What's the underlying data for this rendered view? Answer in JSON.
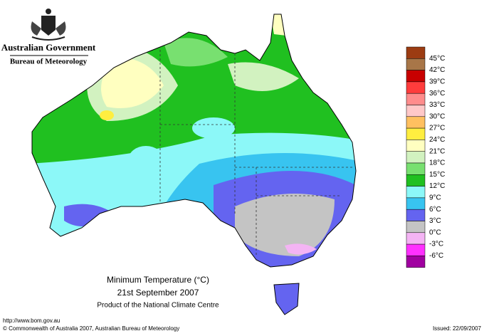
{
  "header": {
    "government": "Australian Government",
    "bureau": "Bureau of Meteorology"
  },
  "map": {
    "title": "Minimum Temperature (°C)",
    "date": "21st September 2007",
    "product": "Product of the National Climate Centre"
  },
  "legend": {
    "labels": [
      "45°C",
      "42°C",
      "39°C",
      "36°C",
      "33°C",
      "30°C",
      "27°C",
      "24°C",
      "21°C",
      "18°C",
      "15°C",
      "12°C",
      "9°C",
      "6°C",
      "3°C",
      "0°C",
      "-3°C",
      "-6°C"
    ],
    "colors": [
      "#9c3c12",
      "#a87648",
      "#c80000",
      "#ff3c3c",
      "#ff8c8c",
      "#ffc8c8",
      "#ffc060",
      "#ffee40",
      "#ffffc0",
      "#d2f2c0",
      "#78e070",
      "#20c020",
      "#8cf8f8",
      "#38c4f0",
      "#6464f0",
      "#c4c4c4",
      "#f4b4f4",
      "#ff30ff",
      "#a000a0"
    ]
  },
  "footer": {
    "url": "http://www.bom.gov.au",
    "copyright": "© Commonwealth of Australia 2007, Australian Bureau of Meteorology",
    "issued": "Issued: 22/09/2007"
  }
}
